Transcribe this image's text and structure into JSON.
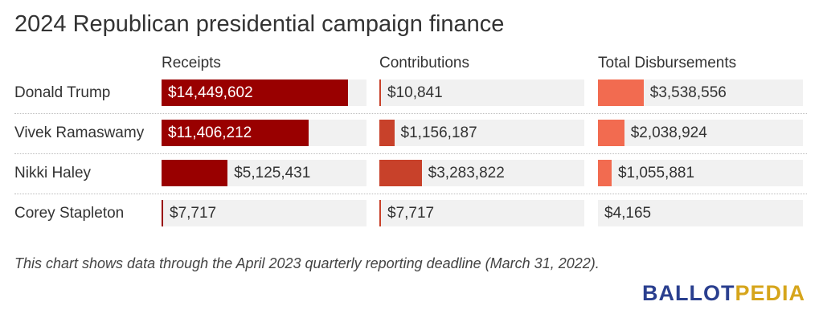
{
  "chart_data": {
    "type": "bar",
    "title": "2024 Republican presidential campaign finance",
    "categories": [
      "Donald Trump",
      "Vivek Ramaswamy",
      "Nikki Haley",
      "Corey Stapleton"
    ],
    "series": [
      {
        "name": "Receipts",
        "values": [
          14449602,
          11406212,
          5125431,
          7717
        ],
        "labels": [
          "$14,449,602",
          "$11,406,212",
          "$5,125,431",
          "$7,717"
        ],
        "color": "#990000"
      },
      {
        "name": "Contributions",
        "values": [
          10841,
          1156187,
          3283822,
          7717
        ],
        "labels": [
          "$10,841",
          "$1,156,187",
          "$3,283,822",
          "$7,717"
        ],
        "color": "#c8412a"
      },
      {
        "name": "Total Disbursements",
        "values": [
          3538556,
          2038924,
          1055881,
          4165
        ],
        "labels": [
          "$3,538,556",
          "$2,038,924",
          "$1,055,881",
          "$4,165"
        ],
        "color": "#f26b50"
      }
    ]
  },
  "footnote": "This chart shows data through the April 2023 quarterly reporting deadline (March 31, 2022).",
  "logo": {
    "part1": "BALLOT",
    "part2": "PEDIA"
  }
}
